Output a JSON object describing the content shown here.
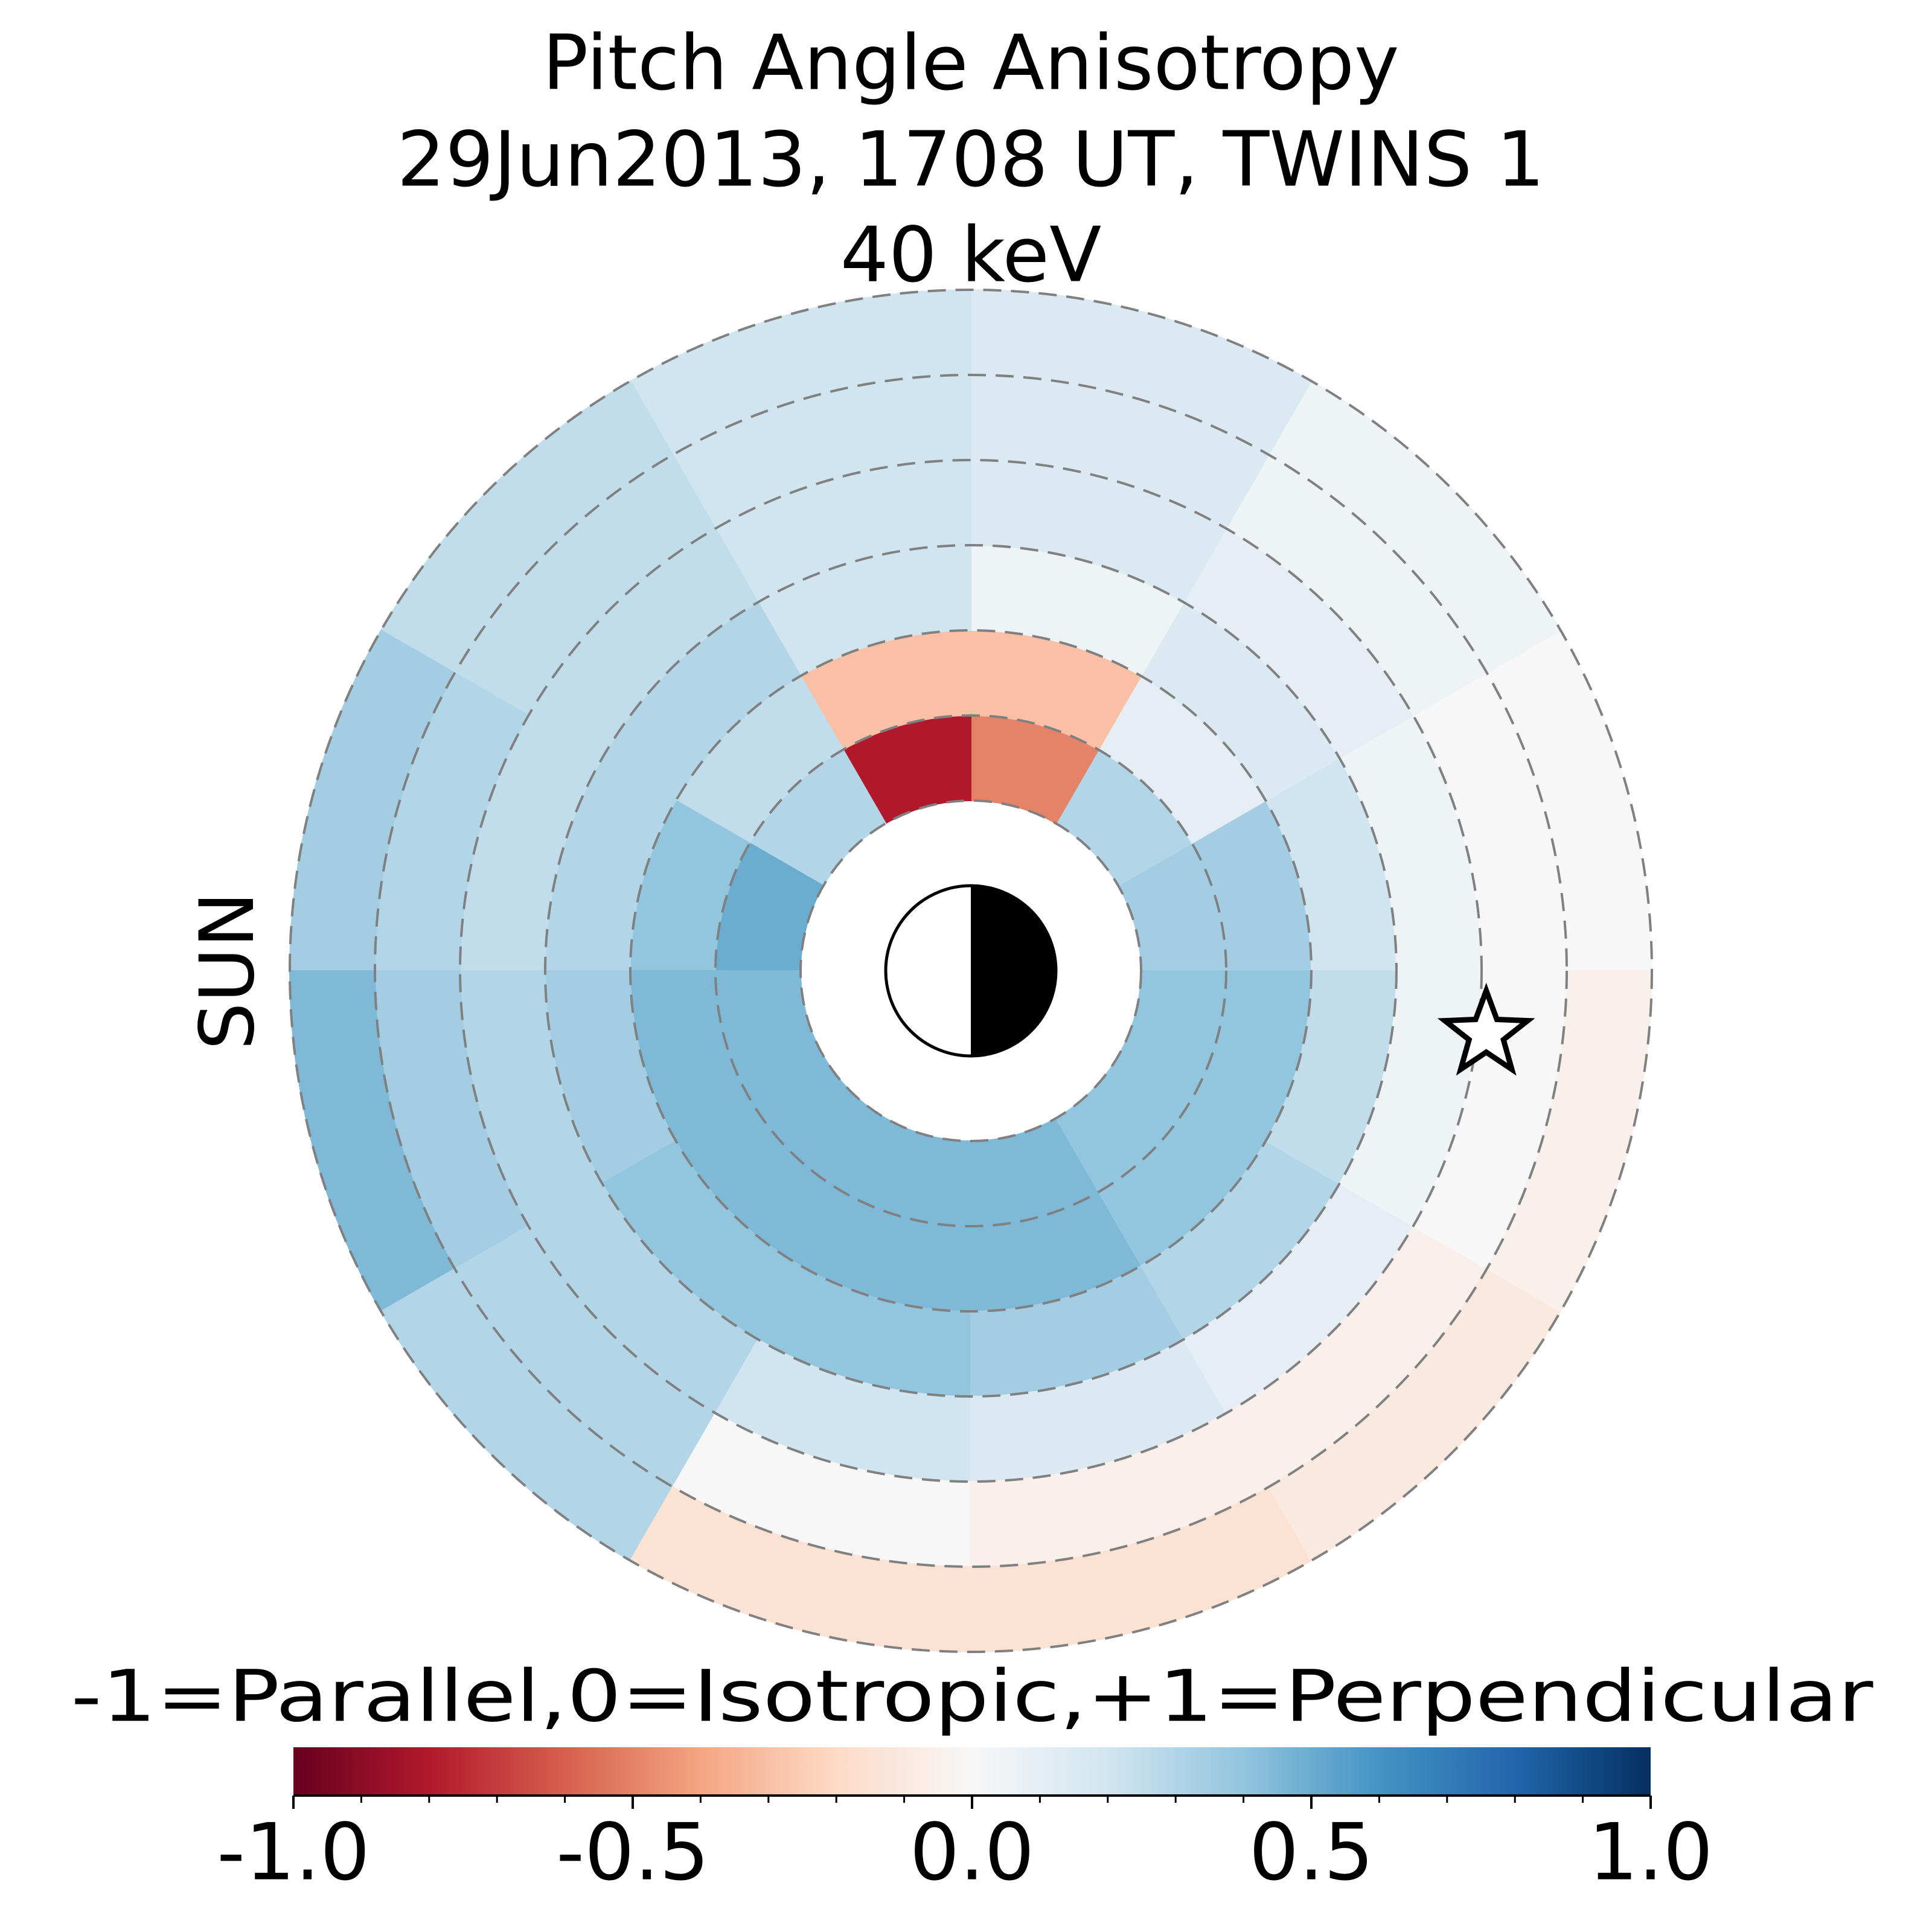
{
  "chart_data": {
    "type": "polar-heatmap",
    "title": [
      "Pitch Angle Anisotropy",
      "29Jun2013, 1708 UT,  TWINS 1",
      "40 keV"
    ],
    "sun_label": "SUN",
    "sun_color": "#ffa500",
    "r_bins": [
      2,
      3,
      4,
      5,
      6,
      7,
      8
    ],
    "theta_bins": [
      0,
      30,
      60,
      90,
      120,
      150,
      180,
      210,
      240,
      270,
      300,
      330,
      360
    ],
    "values": [
      [
        0.35,
        0.3,
        -0.5,
        -0.8,
        0.3,
        0.5,
        0.45,
        0.45,
        0.45,
        0.45,
        0.4,
        0.4
      ],
      [
        0.35,
        0.1,
        -0.3,
        -0.3,
        0.25,
        0.4,
        0.45,
        0.45,
        0.45,
        0.45,
        0.4,
        0.4
      ],
      [
        0.2,
        0.15,
        0.05,
        0.2,
        0.3,
        0.3,
        0.35,
        0.4,
        0.4,
        0.35,
        0.3,
        0.25
      ],
      [
        0.05,
        0.1,
        0.15,
        0.2,
        0.25,
        0.25,
        0.3,
        0.3,
        0.2,
        0.15,
        0.1,
        0.05
      ],
      [
        0.0,
        0.05,
        0.15,
        0.2,
        0.25,
        0.3,
        0.35,
        0.3,
        0.0,
        -0.05,
        -0.05,
        0.0
      ],
      [
        0.0,
        0.05,
        0.15,
        0.2,
        0.25,
        0.35,
        0.45,
        0.3,
        -0.15,
        -0.15,
        -0.1,
        -0.05
      ]
    ],
    "rlim": [
      0,
      8
    ],
    "rticks": [
      2,
      3,
      4,
      5,
      6,
      7,
      8
    ],
    "spacecraft": {
      "r": 6.1,
      "theta": 353
    },
    "colorbar": {
      "label": "-1=Parallel,0=Isotropic,+1=Perpendicular",
      "clim": [
        -1,
        1
      ],
      "ticks": [
        {
          "value": -1,
          "label": "-1.0"
        },
        -0.5,
        {
          "value": 0,
          "label": "0.0"
        },
        0.5,
        {
          "value": 1,
          "label": "1.0"
        }
      ],
      "colors": [
        "#67001f",
        "#b2182b",
        "#d6604d",
        "#f4a582",
        "#fddbc7",
        "#f7f7f7",
        "#d1e5f0",
        "#92c5de",
        "#4393c3",
        "#2166ac",
        "#053061"
      ]
    }
  }
}
